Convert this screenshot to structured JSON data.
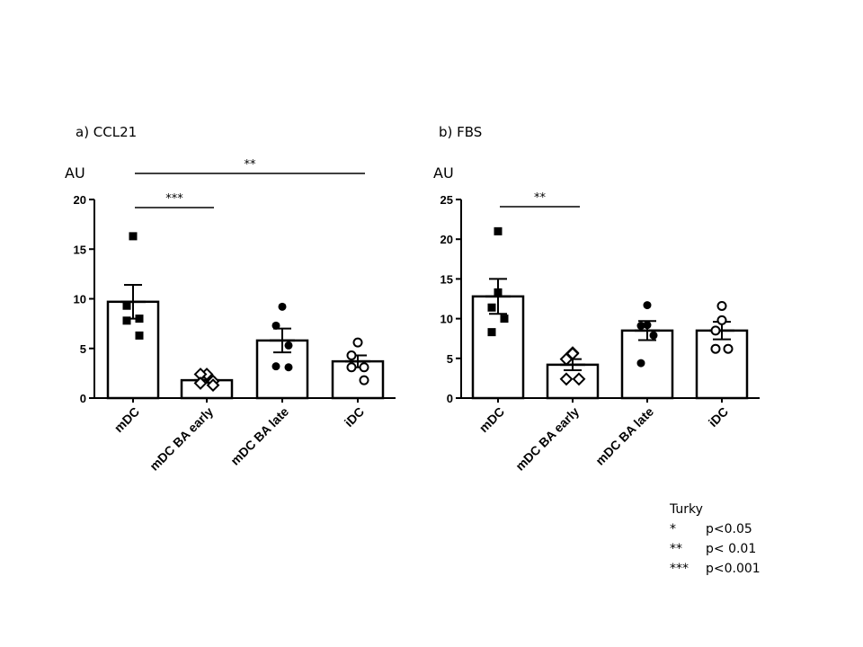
{
  "chart_data": [
    {
      "type": "bar",
      "title": "a) CCL21",
      "ylabel": "AU",
      "ylim": [
        0,
        20
      ],
      "yticks": [
        "0",
        "5",
        "10",
        "15",
        "20"
      ],
      "categories": [
        "mDC",
        "mDC BA early",
        "mDC BA late",
        "iDC"
      ],
      "values": [
        9.7,
        1.8,
        5.8,
        3.7
      ],
      "sem": [
        1.7,
        0.25,
        1.2,
        0.6
      ],
      "points": [
        [
          16.3,
          9.3,
          8.0,
          7.8,
          6.3
        ],
        [
          2.4,
          2.4,
          1.7,
          1.5,
          1.3
        ],
        [
          9.2,
          7.3,
          5.3,
          3.2,
          3.1
        ],
        [
          5.6,
          4.3,
          3.1,
          3.1,
          1.8
        ]
      ],
      "markers": [
        "filled-square",
        "open-diamond",
        "filled-circle",
        "open-circle"
      ],
      "significance": [
        {
          "from": 0,
          "to": 1,
          "label": "***"
        },
        {
          "from": 0,
          "to": 3,
          "label": "**"
        }
      ]
    },
    {
      "type": "bar",
      "title": "b) FBS",
      "ylabel": "AU",
      "ylim": [
        0,
        25
      ],
      "yticks": [
        "0",
        "5",
        "10",
        "15",
        "20",
        "25"
      ],
      "categories": [
        "mDC",
        "mDC BA early",
        "mDC BA late",
        "iDC"
      ],
      "values": [
        12.8,
        4.2,
        8.5,
        8.5
      ],
      "sem": [
        2.2,
        0.7,
        1.2,
        1.1
      ],
      "points": [
        [
          21.0,
          13.3,
          11.4,
          10.0,
          8.3
        ],
        [
          5.7,
          5.6,
          4.9,
          2.4,
          2.4
        ],
        [
          11.7,
          9.2,
          9.1,
          7.9,
          4.4
        ],
        [
          11.6,
          9.8,
          8.5,
          6.2,
          6.2
        ]
      ],
      "markers": [
        "filled-square",
        "open-diamond",
        "filled-circle",
        "open-circle"
      ],
      "significance": [
        {
          "from": 0,
          "to": 1,
          "label": "**"
        }
      ]
    }
  ],
  "legend": {
    "title": "Turky",
    "rows": [
      {
        "symbol": "*",
        "text": "p<0.05"
      },
      {
        "symbol": "**",
        "text": "p< 0.01"
      },
      {
        "symbol": "***",
        "text": "p<0.001"
      }
    ]
  }
}
